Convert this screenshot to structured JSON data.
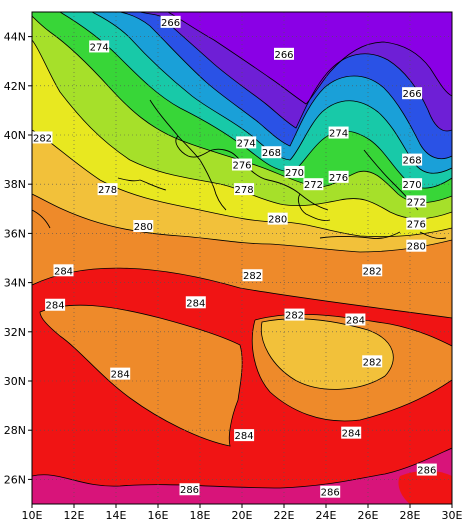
{
  "map": {
    "x_axis": {
      "labels": [
        "10E",
        "12E",
        "14E",
        "16E",
        "18E",
        "20E",
        "22E",
        "24E",
        "26E",
        "28E",
        "30E"
      ],
      "range": [
        10,
        30
      ]
    },
    "y_axis": {
      "labels": [
        "26N",
        "28N",
        "30N",
        "32N",
        "34N",
        "36N",
        "38N",
        "40N",
        "42N",
        "44N"
      ],
      "range": [
        25,
        45
      ]
    },
    "grid": true,
    "contour_labels": [
      {
        "text": "266",
        "lon": 16.6,
        "lat": 44.6
      },
      {
        "text": "266",
        "lon": 22.0,
        "lat": 43.3
      },
      {
        "text": "266",
        "lon": 28.1,
        "lat": 41.7
      },
      {
        "text": "268",
        "lon": 28.1,
        "lat": 39.0
      },
      {
        "text": "268",
        "lon": 21.4,
        "lat": 39.3
      },
      {
        "text": "270",
        "lon": 28.1,
        "lat": 38.0
      },
      {
        "text": "270",
        "lon": 22.5,
        "lat": 38.5
      },
      {
        "text": "272",
        "lon": 23.4,
        "lat": 38.0
      },
      {
        "text": "272",
        "lon": 28.3,
        "lat": 37.3
      },
      {
        "text": "274",
        "lon": 13.2,
        "lat": 43.6
      },
      {
        "text": "274",
        "lon": 20.2,
        "lat": 39.7
      },
      {
        "text": "274",
        "lon": 24.6,
        "lat": 40.1
      },
      {
        "text": "276",
        "lon": 20.0,
        "lat": 38.8
      },
      {
        "text": "276",
        "lon": 24.6,
        "lat": 38.3
      },
      {
        "text": "276",
        "lon": 28.3,
        "lat": 36.4
      },
      {
        "text": "278",
        "lon": 13.6,
        "lat": 37.8
      },
      {
        "text": "278",
        "lon": 20.1,
        "lat": 37.8
      },
      {
        "text": "280",
        "lon": 15.3,
        "lat": 36.3
      },
      {
        "text": "280",
        "lon": 21.7,
        "lat": 36.6
      },
      {
        "text": "280",
        "lon": 28.3,
        "lat": 35.5
      },
      {
        "text": "282",
        "lon": 10.5,
        "lat": 39.9
      },
      {
        "text": "282",
        "lon": 20.5,
        "lat": 34.3
      },
      {
        "text": "282",
        "lon": 26.2,
        "lat": 34.5
      },
      {
        "text": "282",
        "lon": 22.5,
        "lat": 32.7
      },
      {
        "text": "282",
        "lon": 26.2,
        "lat": 30.8
      },
      {
        "text": "284",
        "lon": 11.5,
        "lat": 34.5
      },
      {
        "text": "284",
        "lon": 11.1,
        "lat": 33.1
      },
      {
        "text": "284",
        "lon": 17.8,
        "lat": 33.2
      },
      {
        "text": "284",
        "lon": 25.4,
        "lat": 32.5
      },
      {
        "text": "284",
        "lon": 14.2,
        "lat": 30.3
      },
      {
        "text": "284",
        "lon": 20.1,
        "lat": 27.8
      },
      {
        "text": "284",
        "lon": 25.2,
        "lat": 27.9
      },
      {
        "text": "286",
        "lon": 17.5,
        "lat": 25.6
      },
      {
        "text": "286",
        "lon": 24.2,
        "lat": 25.5
      },
      {
        "text": "286",
        "lon": 28.8,
        "lat": 26.4
      }
    ],
    "colors": {
      "violet": "#8a00e6",
      "purple": "#6e1fd6",
      "blue": "#2a52e6",
      "cyan_blue": "#1aa0d8",
      "teal": "#18c9a8",
      "green": "#38d638",
      "lime": "#a6e02a",
      "yellow": "#e8e820",
      "light_orange": "#f2c13a",
      "orange": "#ee8a2a",
      "red": "#f01414",
      "magenta": "#d8147a"
    }
  }
}
